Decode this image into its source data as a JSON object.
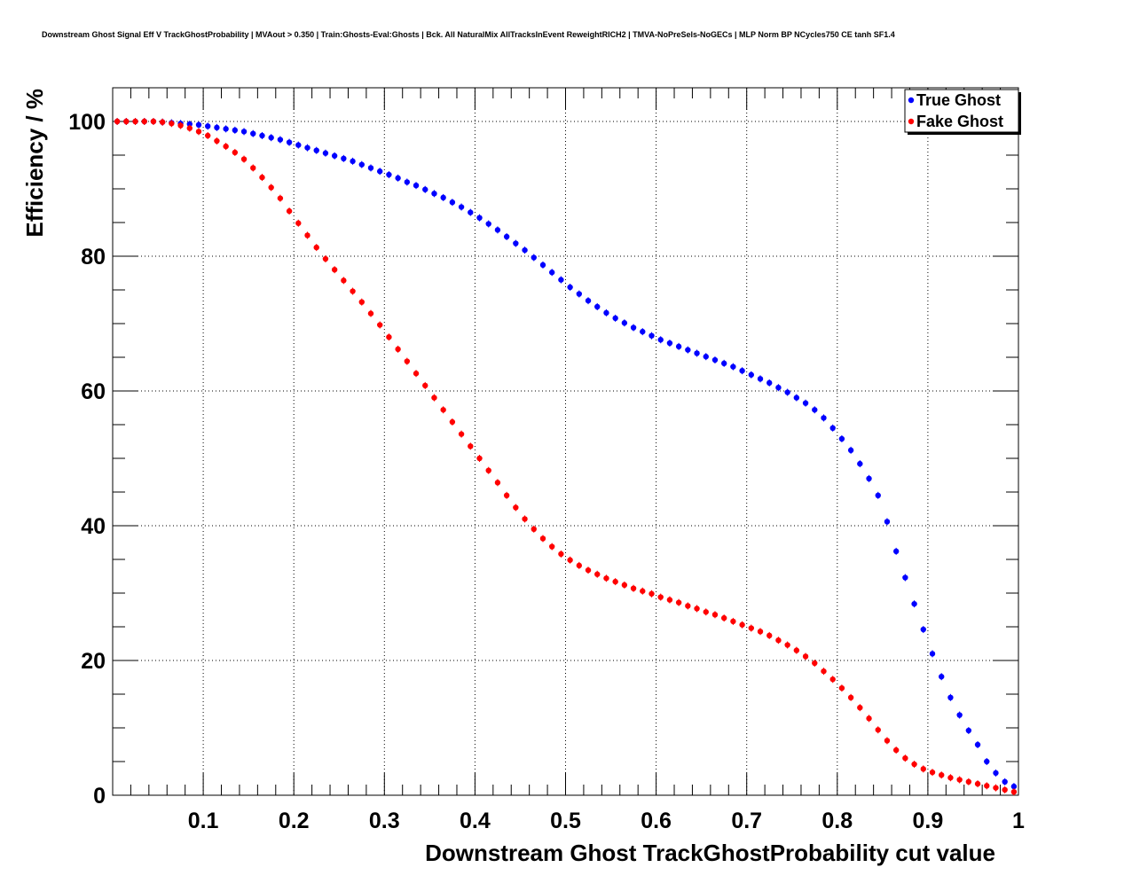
{
  "title": "Downstream Ghost Signal Eff V TrackGhostProbability | MVAout > 0.350 | Train:Ghosts-Eval:Ghosts | Bck. All NaturalMix AllTracksInEvent ReweightRICH2 | TMVA-NoPreSels-NoGECs | MLP Norm BP NCycles750 CE tanh SF1.4",
  "chart_data": {
    "type": "scatter",
    "title": "Downstream Ghost Signal Eff V TrackGhostProbability | MVAout > 0.350 | Train:Ghosts-Eval:Ghosts | Bck. All NaturalMix AllTracksInEvent ReweightRICH2 | TMVA-NoPreSels-NoGECs | MLP Norm BP NCycles750 CE tanh SF1.4",
    "xlabel": "Downstream Ghost TrackGhostProbability cut value",
    "ylabel": "Efficiency / %",
    "xlim": [
      0,
      1
    ],
    "ylim": [
      0,
      105
    ],
    "xticks": [
      "0.1",
      "0.2",
      "0.3",
      "0.4",
      "0.5",
      "0.6",
      "0.7",
      "0.8",
      "0.9",
      "1"
    ],
    "yticks": [
      "0",
      "20",
      "40",
      "60",
      "80",
      "100"
    ],
    "grid": true,
    "legend_position": "top-right",
    "series": [
      {
        "name": "True Ghost",
        "color": "#0000ff",
        "points": [
          [
            0.005,
            100.0
          ],
          [
            0.015,
            100.0
          ],
          [
            0.025,
            100.0
          ],
          [
            0.035,
            100.0
          ],
          [
            0.045,
            100.0
          ],
          [
            0.055,
            99.9
          ],
          [
            0.065,
            99.8
          ],
          [
            0.075,
            99.7
          ],
          [
            0.085,
            99.6
          ],
          [
            0.095,
            99.5
          ],
          [
            0.105,
            99.3
          ],
          [
            0.115,
            99.1
          ],
          [
            0.125,
            98.9
          ],
          [
            0.135,
            98.7
          ],
          [
            0.145,
            98.5
          ],
          [
            0.155,
            98.2
          ],
          [
            0.165,
            97.9
          ],
          [
            0.175,
            97.6
          ],
          [
            0.185,
            97.3
          ],
          [
            0.195,
            96.9
          ],
          [
            0.205,
            96.5
          ],
          [
            0.215,
            96.1
          ],
          [
            0.225,
            95.7
          ],
          [
            0.235,
            95.3
          ],
          [
            0.245,
            94.9
          ],
          [
            0.255,
            94.5
          ],
          [
            0.265,
            94.1
          ],
          [
            0.275,
            93.6
          ],
          [
            0.285,
            93.1
          ],
          [
            0.295,
            92.6
          ],
          [
            0.305,
            92.1
          ],
          [
            0.315,
            91.6
          ],
          [
            0.325,
            91.0
          ],
          [
            0.335,
            90.5
          ],
          [
            0.345,
            89.9
          ],
          [
            0.355,
            89.3
          ],
          [
            0.365,
            88.7
          ],
          [
            0.375,
            88.0
          ],
          [
            0.385,
            87.3
          ],
          [
            0.395,
            86.5
          ],
          [
            0.405,
            85.7
          ],
          [
            0.415,
            84.8
          ],
          [
            0.425,
            83.9
          ],
          [
            0.435,
            82.9
          ],
          [
            0.445,
            81.9
          ],
          [
            0.455,
            80.9
          ],
          [
            0.465,
            79.8
          ],
          [
            0.475,
            78.7
          ],
          [
            0.485,
            77.6
          ],
          [
            0.495,
            76.5
          ],
          [
            0.505,
            75.4
          ],
          [
            0.515,
            74.4
          ],
          [
            0.525,
            73.4
          ],
          [
            0.535,
            72.5
          ],
          [
            0.545,
            71.6
          ],
          [
            0.555,
            70.8
          ],
          [
            0.565,
            70.1
          ],
          [
            0.575,
            69.4
          ],
          [
            0.585,
            68.8
          ],
          [
            0.595,
            68.2
          ],
          [
            0.605,
            67.6
          ],
          [
            0.615,
            67.1
          ],
          [
            0.625,
            66.6
          ],
          [
            0.635,
            66.1
          ],
          [
            0.645,
            65.6
          ],
          [
            0.655,
            65.1
          ],
          [
            0.665,
            64.6
          ],
          [
            0.675,
            64.1
          ],
          [
            0.685,
            63.6
          ],
          [
            0.695,
            63.0
          ],
          [
            0.705,
            62.4
          ],
          [
            0.715,
            61.8
          ],
          [
            0.725,
            61.2
          ],
          [
            0.735,
            60.5
          ],
          [
            0.745,
            59.8
          ],
          [
            0.755,
            59.0
          ],
          [
            0.765,
            58.2
          ],
          [
            0.775,
            57.2
          ],
          [
            0.785,
            56.0
          ],
          [
            0.795,
            54.5
          ],
          [
            0.805,
            52.9
          ],
          [
            0.815,
            51.2
          ],
          [
            0.825,
            49.2
          ],
          [
            0.835,
            47.0
          ],
          [
            0.845,
            44.5
          ],
          [
            0.855,
            40.6
          ],
          [
            0.865,
            36.2
          ],
          [
            0.875,
            32.3
          ],
          [
            0.885,
            28.4
          ],
          [
            0.895,
            24.6
          ],
          [
            0.905,
            21.0
          ],
          [
            0.915,
            17.6
          ],
          [
            0.925,
            14.5
          ],
          [
            0.935,
            11.9
          ],
          [
            0.945,
            9.6
          ],
          [
            0.955,
            7.5
          ],
          [
            0.965,
            5.0
          ],
          [
            0.975,
            3.3
          ],
          [
            0.985,
            2.0
          ],
          [
            0.995,
            1.3
          ]
        ]
      },
      {
        "name": "Fake Ghost",
        "color": "#ff0000",
        "points": [
          [
            0.005,
            100.0
          ],
          [
            0.015,
            100.0
          ],
          [
            0.025,
            100.0
          ],
          [
            0.035,
            100.0
          ],
          [
            0.045,
            100.0
          ],
          [
            0.055,
            99.9
          ],
          [
            0.065,
            99.7
          ],
          [
            0.075,
            99.4
          ],
          [
            0.085,
            99.0
          ],
          [
            0.095,
            98.5
          ],
          [
            0.105,
            97.9
          ],
          [
            0.115,
            97.1
          ],
          [
            0.125,
            96.3
          ],
          [
            0.135,
            95.4
          ],
          [
            0.145,
            94.4
          ],
          [
            0.155,
            93.1
          ],
          [
            0.165,
            91.7
          ],
          [
            0.175,
            90.2
          ],
          [
            0.185,
            88.6
          ],
          [
            0.195,
            86.7
          ],
          [
            0.205,
            84.9
          ],
          [
            0.215,
            83.1
          ],
          [
            0.225,
            81.3
          ],
          [
            0.235,
            79.6
          ],
          [
            0.245,
            78.0
          ],
          [
            0.255,
            76.4
          ],
          [
            0.265,
            74.8
          ],
          [
            0.275,
            73.2
          ],
          [
            0.285,
            71.5
          ],
          [
            0.295,
            69.8
          ],
          [
            0.305,
            68.0
          ],
          [
            0.315,
            66.2
          ],
          [
            0.325,
            64.4
          ],
          [
            0.335,
            62.6
          ],
          [
            0.345,
            60.8
          ],
          [
            0.355,
            59.0
          ],
          [
            0.365,
            57.2
          ],
          [
            0.375,
            55.4
          ],
          [
            0.385,
            53.6
          ],
          [
            0.395,
            51.8
          ],
          [
            0.405,
            50.0
          ],
          [
            0.415,
            48.2
          ],
          [
            0.425,
            46.4
          ],
          [
            0.435,
            44.5
          ],
          [
            0.445,
            42.7
          ],
          [
            0.455,
            41.0
          ],
          [
            0.465,
            39.5
          ],
          [
            0.475,
            38.1
          ],
          [
            0.485,
            36.9
          ],
          [
            0.495,
            35.8
          ],
          [
            0.505,
            34.9
          ],
          [
            0.515,
            34.1
          ],
          [
            0.525,
            33.4
          ],
          [
            0.535,
            32.8
          ],
          [
            0.545,
            32.2
          ],
          [
            0.555,
            31.7
          ],
          [
            0.565,
            31.2
          ],
          [
            0.575,
            30.7
          ],
          [
            0.585,
            30.3
          ],
          [
            0.595,
            29.9
          ],
          [
            0.605,
            29.4
          ],
          [
            0.615,
            29.0
          ],
          [
            0.625,
            28.6
          ],
          [
            0.635,
            28.1
          ],
          [
            0.645,
            27.7
          ],
          [
            0.655,
            27.2
          ],
          [
            0.665,
            26.8
          ],
          [
            0.675,
            26.3
          ],
          [
            0.685,
            25.8
          ],
          [
            0.695,
            25.3
          ],
          [
            0.705,
            24.8
          ],
          [
            0.715,
            24.3
          ],
          [
            0.725,
            23.7
          ],
          [
            0.735,
            23.0
          ],
          [
            0.745,
            22.3
          ],
          [
            0.755,
            21.5
          ],
          [
            0.765,
            20.6
          ],
          [
            0.775,
            19.6
          ],
          [
            0.785,
            18.4
          ],
          [
            0.795,
            17.2
          ],
          [
            0.805,
            15.9
          ],
          [
            0.815,
            14.5
          ],
          [
            0.825,
            13.0
          ],
          [
            0.835,
            11.4
          ],
          [
            0.845,
            9.7
          ],
          [
            0.855,
            8.1
          ],
          [
            0.865,
            6.7
          ],
          [
            0.875,
            5.5
          ],
          [
            0.885,
            4.6
          ],
          [
            0.895,
            3.9
          ],
          [
            0.905,
            3.4
          ],
          [
            0.915,
            3.0
          ],
          [
            0.925,
            2.6
          ],
          [
            0.935,
            2.3
          ],
          [
            0.945,
            2.0
          ],
          [
            0.955,
            1.7
          ],
          [
            0.965,
            1.4
          ],
          [
            0.975,
            1.1
          ],
          [
            0.985,
            0.8
          ],
          [
            0.995,
            0.5
          ]
        ]
      }
    ]
  }
}
